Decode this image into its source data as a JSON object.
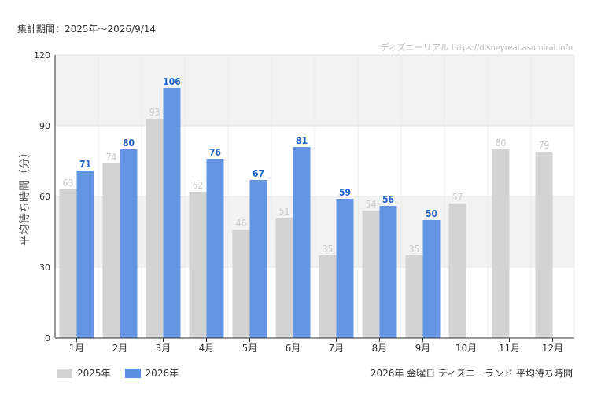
{
  "header": {
    "period_text": "集計期間：2025年～2026/9/14",
    "credit_text": "ディズニーリアル https://disneyreal.asumirai.info"
  },
  "footer": {
    "title_text": "2026年 金曜日 ディズニーランド 平均待ち時間"
  },
  "colors": {
    "series_2025": "#d3d3d3",
    "series_2026": "#5b8fe0",
    "label_2025": "#c8c8c8",
    "label_2026": "#1f63c6",
    "band": "#f2f2f2"
  },
  "chart_data": {
    "type": "bar",
    "title": "",
    "xlabel": "",
    "ylabel": "平均待ち時間（分）",
    "ylim": [
      0,
      120
    ],
    "yticks": [
      0,
      30,
      60,
      90,
      120
    ],
    "categories": [
      "1月",
      "2月",
      "3月",
      "4月",
      "5月",
      "6月",
      "7月",
      "8月",
      "9月",
      "10月",
      "11月",
      "12月"
    ],
    "series": [
      {
        "name": "2025年",
        "values": [
          63,
          74,
          93,
          62,
          46,
          51,
          35,
          54,
          35,
          57,
          80,
          79
        ]
      },
      {
        "name": "2026年",
        "values": [
          71,
          80,
          106,
          76,
          67,
          81,
          59,
          56,
          50,
          null,
          null,
          null
        ]
      }
    ],
    "legend_position": "bottom-left",
    "grid": true
  }
}
